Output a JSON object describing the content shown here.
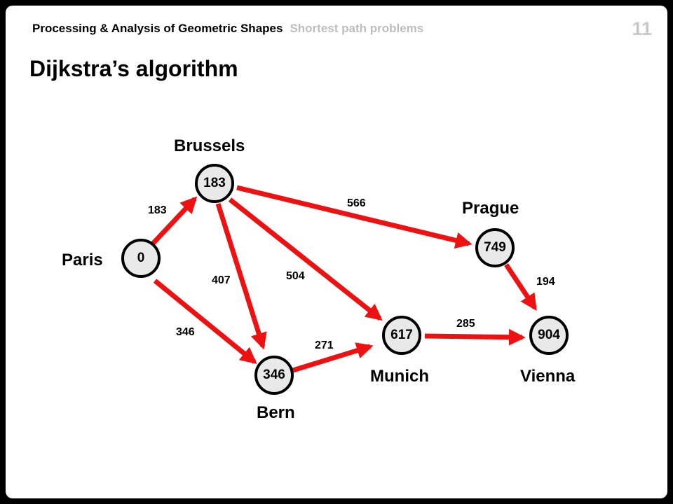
{
  "header": {
    "course": "Processing & Analysis of Geometric Shapes",
    "section": "Shortest path problems",
    "page_number": "11"
  },
  "title": "Dijkstra’s algorithm",
  "colors": {
    "edge": "#ee1111",
    "node_fill": "#e9e9e9",
    "node_border": "#000000"
  },
  "nodes": {
    "paris": {
      "city": "Paris",
      "distance": "0"
    },
    "brussels": {
      "city": "Brussels",
      "distance": "183"
    },
    "bern": {
      "city": "Bern",
      "distance": "346"
    },
    "prague": {
      "city": "Prague",
      "distance": "749"
    },
    "munich": {
      "city": "Munich",
      "distance": "617"
    },
    "vienna": {
      "city": "Vienna",
      "distance": "904"
    }
  },
  "edges": {
    "paris_brussels": {
      "from": "Paris",
      "to": "Brussels",
      "weight": "183"
    },
    "paris_bern": {
      "from": "Paris",
      "to": "Bern",
      "weight": "346"
    },
    "brussels_bern": {
      "from": "Brussels",
      "to": "Bern",
      "weight": "407"
    },
    "brussels_munich": {
      "from": "Brussels",
      "to": "Munich",
      "weight": "504"
    },
    "brussels_prague": {
      "from": "Brussels",
      "to": "Prague",
      "weight": "566"
    },
    "bern_munich": {
      "from": "Bern",
      "to": "Munich",
      "weight": "271"
    },
    "munich_vienna": {
      "from": "Munich",
      "to": "Vienna",
      "weight": "285"
    },
    "prague_vienna": {
      "from": "Prague",
      "to": "Vienna",
      "weight": "194"
    }
  }
}
